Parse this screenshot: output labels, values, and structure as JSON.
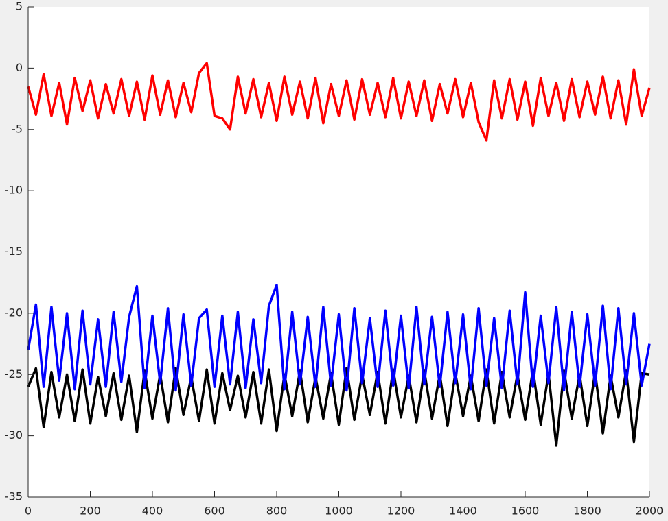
{
  "chart_data": {
    "type": "line",
    "x": [
      0,
      25,
      50,
      75,
      100,
      125,
      150,
      175,
      200,
      225,
      250,
      275,
      300,
      325,
      350,
      375,
      400,
      425,
      450,
      475,
      500,
      525,
      550,
      575,
      600,
      625,
      650,
      675,
      700,
      725,
      750,
      775,
      800,
      825,
      850,
      875,
      900,
      925,
      950,
      975,
      1000,
      1025,
      1050,
      1075,
      1100,
      1125,
      1150,
      1175,
      1200,
      1225,
      1250,
      1275,
      1300,
      1325,
      1350,
      1375,
      1400,
      1425,
      1450,
      1475,
      1500,
      1525,
      1550,
      1575,
      1600,
      1625,
      1650,
      1675,
      1700,
      1725,
      1750,
      1775,
      1800,
      1825,
      1850,
      1875,
      1900,
      1925,
      1950,
      1975,
      2000
    ],
    "series": [
      {
        "color": "#ff0000",
        "values": [
          -1.5,
          -3.8,
          -0.5,
          -3.9,
          -1.2,
          -4.6,
          -0.8,
          -3.5,
          -1.0,
          -4.1,
          -1.3,
          -3.7,
          -0.9,
          -3.9,
          -1.1,
          -4.2,
          -0.6,
          -3.8,
          -1.0,
          -4.0,
          -1.2,
          -3.6,
          -0.4,
          0.4,
          -3.9,
          -4.1,
          -5.0,
          -0.7,
          -3.7,
          -0.9,
          -4.0,
          -1.2,
          -4.3,
          -0.7,
          -3.8,
          -1.1,
          -4.1,
          -0.8,
          -4.5,
          -1.3,
          -3.9,
          -1.0,
          -4.2,
          -0.9,
          -3.8,
          -1.2,
          -4.0,
          -0.8,
          -4.1,
          -1.1,
          -3.9,
          -1.0,
          -4.3,
          -1.3,
          -3.7,
          -0.9,
          -4.0,
          -1.2,
          -4.4,
          -5.9,
          -1.0,
          -4.1,
          -0.9,
          -4.2,
          -1.1,
          -4.7,
          -0.8,
          -3.9,
          -1.2,
          -4.3,
          -0.9,
          -4.0,
          -1.1,
          -3.8,
          -0.7,
          -4.1,
          -1.0,
          -4.6,
          -0.1,
          -3.9,
          -1.6
        ]
      },
      {
        "color": "#000000",
        "values": [
          -26.0,
          -24.5,
          -29.3,
          -24.8,
          -28.5,
          -25.0,
          -28.8,
          -24.6,
          -29.0,
          -25.2,
          -28.4,
          -24.9,
          -28.7,
          -25.1,
          -29.7,
          -24.7,
          -28.6,
          -25.0,
          -28.9,
          -24.5,
          -28.3,
          -25.2,
          -28.8,
          -24.6,
          -29.0,
          -24.9,
          -27.9,
          -25.1,
          -28.5,
          -24.8,
          -29.0,
          -24.6,
          -29.6,
          -25.0,
          -28.4,
          -24.7,
          -28.9,
          -25.2,
          -28.6,
          -24.9,
          -29.1,
          -24.5,
          -28.7,
          -25.0,
          -28.3,
          -24.8,
          -29.0,
          -24.6,
          -28.5,
          -25.1,
          -28.9,
          -24.7,
          -28.6,
          -25.0,
          -29.2,
          -24.9,
          -28.4,
          -25.1,
          -28.8,
          -24.6,
          -29.0,
          -24.8,
          -28.5,
          -25.0,
          -28.7,
          -24.6,
          -29.1,
          -24.9,
          -30.8,
          -24.7,
          -28.6,
          -25.0,
          -29.2,
          -24.8,
          -29.8,
          -25.1,
          -28.5,
          -24.7,
          -30.5,
          -24.9,
          -25.0
        ]
      },
      {
        "color": "#0000ff",
        "values": [
          -23.0,
          -19.3,
          -26.0,
          -19.5,
          -25.5,
          -20.0,
          -26.2,
          -19.8,
          -25.8,
          -20.5,
          -26.0,
          -19.9,
          -25.6,
          -20.3,
          -17.8,
          -26.1,
          -20.2,
          -25.7,
          -19.6,
          -26.3,
          -20.1,
          -25.9,
          -20.4,
          -19.7,
          -26.0,
          -20.2,
          -25.8,
          -19.9,
          -26.1,
          -20.5,
          -25.7,
          -19.4,
          -17.7,
          -26.2,
          -19.9,
          -25.8,
          -20.3,
          -26.0,
          -19.5,
          -25.9,
          -20.1,
          -26.3,
          -19.6,
          -25.7,
          -20.4,
          -26.0,
          -19.8,
          -25.9,
          -20.2,
          -26.1,
          -19.5,
          -25.8,
          -20.3,
          -26.0,
          -19.9,
          -25.7,
          -20.1,
          -26.2,
          -19.6,
          -25.9,
          -20.4,
          -26.1,
          -19.8,
          -25.8,
          -18.3,
          -26.0,
          -20.2,
          -25.7,
          -19.5,
          -26.3,
          -19.9,
          -26.0,
          -20.1,
          -25.9,
          -19.4,
          -26.2,
          -19.6,
          -25.8,
          -20.0,
          -25.9,
          -22.5
        ]
      }
    ],
    "xlim": [
      0,
      2000
    ],
    "xticks": [
      0,
      200,
      400,
      600,
      800,
      1000,
      1200,
      1400,
      1600,
      1800,
      2000
    ],
    "ylim": [
      -35,
      5
    ],
    "yticks": [
      -35,
      -30,
      -25,
      -20,
      -15,
      -10,
      -5,
      0,
      5
    ]
  }
}
